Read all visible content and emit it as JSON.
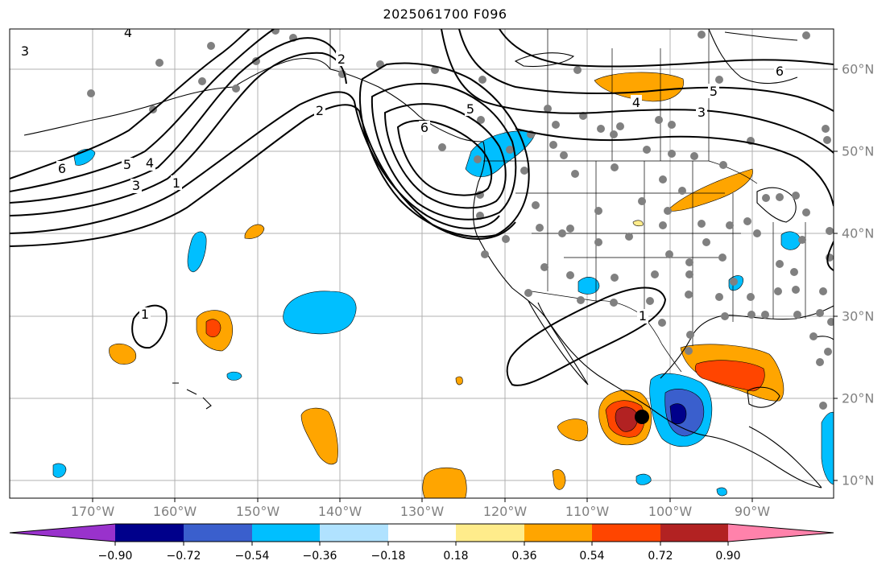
{
  "title": "2025061700 F096",
  "longitude_labels": [
    "170°W",
    "160°W",
    "150°W",
    "140°W",
    "130°W",
    "120°W",
    "110°W",
    "100°W",
    "90°W"
  ],
  "latitude_labels": [
    "60°N",
    "50°N",
    "40°N",
    "30°N",
    "20°N",
    "10°N"
  ],
  "contour_labels": [
    "3",
    "4",
    "6",
    "5",
    "4",
    "3",
    "1",
    "2",
    "5",
    "6",
    "6",
    "5",
    "4",
    "3",
    "1",
    "1",
    "2"
  ],
  "colorbar": {
    "tick_labels": [
      "−0.90",
      "−0.72",
      "−0.54",
      "−0.36",
      "−0.18",
      "0.18",
      "0.36",
      "0.54",
      "0.72",
      "0.90"
    ],
    "colors": [
      "#9932cc",
      "#00008b",
      "#3a5fcd",
      "#00bfff",
      "#b0e2ff",
      "#ffffff",
      "#ffec8b",
      "#ffa500",
      "#ff4500",
      "#b22222",
      "#ff82ab"
    ]
  }
}
